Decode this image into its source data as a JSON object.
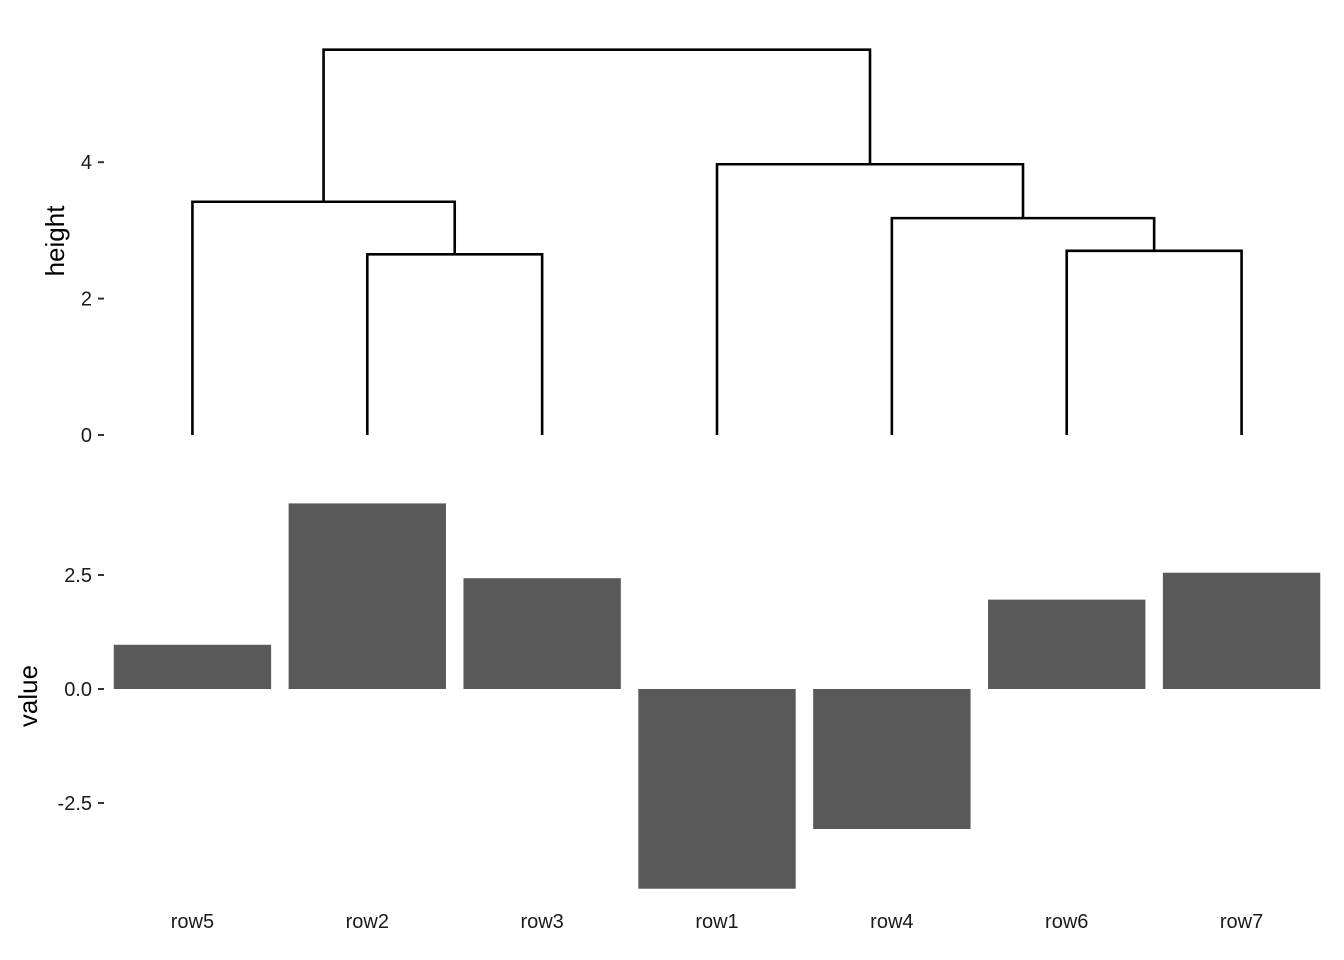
{
  "chart_data": [
    {
      "type": "dendrogram",
      "ylabel": "height",
      "yticks": [
        0,
        2,
        4
      ],
      "ylim": [
        0,
        5.65
      ],
      "leaves": [
        "row5",
        "row2",
        "row3",
        "row1",
        "row4",
        "row6",
        "row7"
      ],
      "merges": [
        {
          "left": "row2",
          "right": "row3",
          "height": 2.65
        },
        {
          "left": "row6",
          "right": "row7",
          "height": 2.7
        },
        {
          "left": "row5",
          "right": "row2+row3",
          "height": 3.42
        },
        {
          "left": "row4",
          "right": "row6+row7",
          "height": 3.18
        },
        {
          "left": "row1",
          "right": "row4+row6+row7",
          "height": 3.97
        },
        {
          "left": "row5+row2+row3",
          "right": "row1+row4+row6+row7",
          "height": 5.65
        }
      ]
    },
    {
      "type": "bar",
      "ylabel": "value",
      "xlabel": "",
      "categories": [
        "row5",
        "row2",
        "row3",
        "row1",
        "row4",
        "row6",
        "row7"
      ],
      "values": [
        0.97,
        4.07,
        2.43,
        -4.38,
        -3.07,
        1.96,
        2.55
      ],
      "yticks": [
        -2.5,
        0.0,
        2.5
      ],
      "ytick_labels": [
        "-2.5",
        "0.0",
        "2.5"
      ],
      "ylim": [
        -4.5,
        4.2
      ],
      "bar_color": "#595959"
    }
  ]
}
